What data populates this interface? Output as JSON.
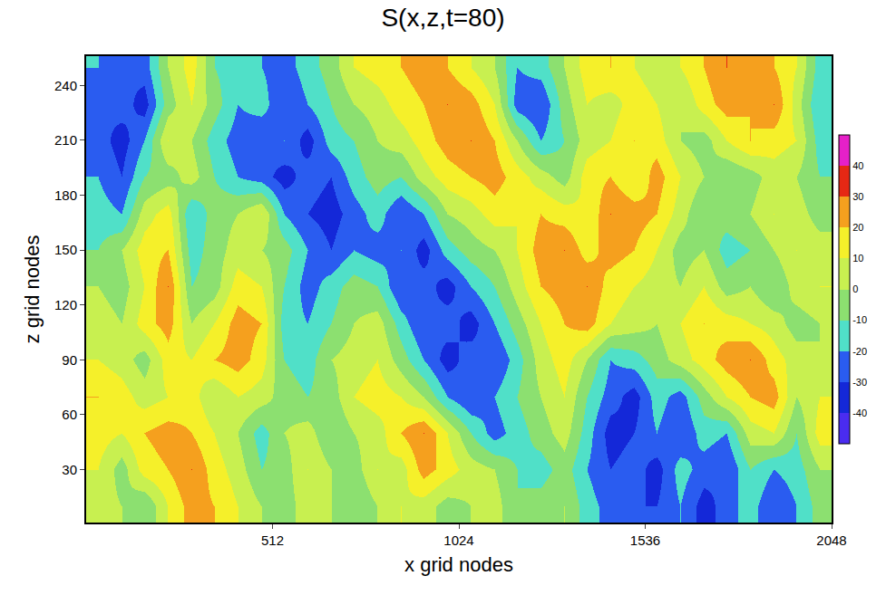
{
  "chart_data": {
    "type": "heatmap",
    "title": "S(x,z,t=80)",
    "x_label": "x grid nodes",
    "y_label": "z grid nodes",
    "x": [
      32,
      96,
      160,
      224,
      288,
      352,
      416,
      480,
      544,
      608,
      672,
      736,
      800,
      864,
      928,
      992,
      1056,
      1120,
      1184,
      1248,
      1312,
      1376,
      1440,
      1504,
      1568,
      1632,
      1696,
      1760,
      1824,
      1888,
      1952,
      2016
    ],
    "y": [
      10,
      30,
      50,
      70,
      90,
      110,
      130,
      150,
      170,
      190,
      210,
      230,
      250
    ],
    "z": [
      [
        5,
        0,
        -10,
        10,
        25,
        20,
        10,
        0,
        -5,
        5,
        0,
        -10,
        0,
        10,
        5,
        -5,
        0,
        5,
        -10,
        -5,
        0,
        -15,
        -25,
        -30,
        -30,
        -20,
        -35,
        -25,
        -15,
        -30,
        -20,
        -5
      ],
      [
        10,
        -5,
        15,
        20,
        30,
        15,
        5,
        -10,
        -5,
        10,
        0,
        -5,
        10,
        5,
        25,
        15,
        5,
        0,
        -10,
        -15,
        -5,
        -20,
        -30,
        -25,
        -35,
        -15,
        -25,
        -30,
        -10,
        -20,
        -15,
        0
      ],
      [
        15,
        10,
        20,
        25,
        20,
        10,
        0,
        -15,
        0,
        5,
        -10,
        0,
        5,
        20,
        30,
        10,
        -10,
        -25,
        -15,
        -5,
        5,
        -15,
        -35,
        -30,
        -20,
        -30,
        -15,
        -20,
        5,
        10,
        -10,
        15
      ],
      [
        20,
        15,
        5,
        10,
        15,
        0,
        10,
        5,
        -5,
        -10,
        -5,
        10,
        15,
        10,
        0,
        -20,
        -30,
        -20,
        -10,
        0,
        10,
        -10,
        -25,
        -35,
        -15,
        -25,
        -5,
        10,
        20,
        25,
        0,
        10
      ],
      [
        10,
        5,
        -5,
        15,
        10,
        20,
        25,
        15,
        -10,
        -15,
        0,
        5,
        10,
        -5,
        -20,
        -35,
        -25,
        -30,
        -15,
        5,
        15,
        0,
        -20,
        -15,
        -5,
        5,
        15,
        25,
        30,
        15,
        5,
        0
      ],
      [
        5,
        0,
        15,
        25,
        0,
        10,
        25,
        20,
        -15,
        -20,
        -10,
        0,
        5,
        -15,
        -30,
        -25,
        -35,
        -20,
        -5,
        10,
        20,
        25,
        10,
        5,
        0,
        10,
        20,
        15,
        10,
        5,
        -5,
        0
      ],
      [
        0,
        -5,
        10,
        30,
        -10,
        -5,
        15,
        10,
        -10,
        -25,
        -15,
        -5,
        -10,
        -30,
        -25,
        -35,
        -20,
        -10,
        5,
        20,
        25,
        30,
        15,
        10,
        5,
        0,
        10,
        -5,
        0,
        -10,
        5,
        10
      ],
      [
        -10,
        0,
        15,
        20,
        -15,
        -5,
        5,
        0,
        -5,
        -20,
        -30,
        -20,
        -25,
        -20,
        -35,
        -15,
        -5,
        0,
        10,
        25,
        30,
        15,
        25,
        20,
        10,
        -5,
        0,
        -15,
        -10,
        0,
        10,
        5
      ],
      [
        -15,
        -20,
        5,
        15,
        -20,
        -5,
        0,
        10,
        -20,
        -30,
        -35,
        -25,
        -15,
        -30,
        -20,
        0,
        5,
        15,
        10,
        20,
        15,
        10,
        30,
        25,
        20,
        5,
        -10,
        -5,
        0,
        10,
        5,
        -5
      ],
      [
        -20,
        -30,
        -10,
        -5,
        5,
        -10,
        -20,
        -25,
        -35,
        -25,
        -30,
        -15,
        -5,
        -10,
        5,
        15,
        20,
        25,
        15,
        5,
        -5,
        15,
        20,
        10,
        25,
        10,
        0,
        -10,
        -5,
        5,
        0,
        -10
      ],
      [
        -25,
        -35,
        -20,
        10,
        0,
        -15,
        -25,
        -30,
        -20,
        -35,
        -15,
        -10,
        0,
        5,
        15,
        25,
        30,
        20,
        0,
        -20,
        -10,
        5,
        10,
        20,
        15,
        0,
        -5,
        10,
        20,
        15,
        10,
        -15
      ],
      [
        -30,
        -25,
        -35,
        -5,
        10,
        -5,
        -20,
        -15,
        -30,
        -20,
        -10,
        0,
        5,
        15,
        20,
        30,
        25,
        10,
        -25,
        -30,
        -5,
        10,
        5,
        15,
        10,
        0,
        15,
        25,
        20,
        30,
        5,
        -20
      ],
      [
        -20,
        -30,
        -25,
        0,
        15,
        -10,
        -15,
        -20,
        -25,
        -15,
        -5,
        10,
        15,
        20,
        25,
        20,
        10,
        0,
        -20,
        -15,
        0,
        15,
        20,
        10,
        5,
        10,
        20,
        30,
        25,
        20,
        10,
        -15
      ]
    ],
    "xlim": [
      0,
      2048
    ],
    "ylim": [
      1,
      256
    ],
    "xticks": [
      512,
      1024,
      1536,
      2048
    ],
    "yticks": [
      30,
      60,
      90,
      120,
      150,
      180,
      210,
      240
    ],
    "colorbar": {
      "range": [
        -50,
        50
      ],
      "ticks": [
        -40,
        -30,
        -20,
        -10,
        0,
        10,
        20,
        30,
        40
      ]
    },
    "colors": [
      "#4a2cf0",
      "#1428d8",
      "#2a5cf0",
      "#50e0c8",
      "#8ce070",
      "#c8f050",
      "#f5f02a",
      "#f5a01e",
      "#e62814",
      "#e620c8"
    ]
  }
}
